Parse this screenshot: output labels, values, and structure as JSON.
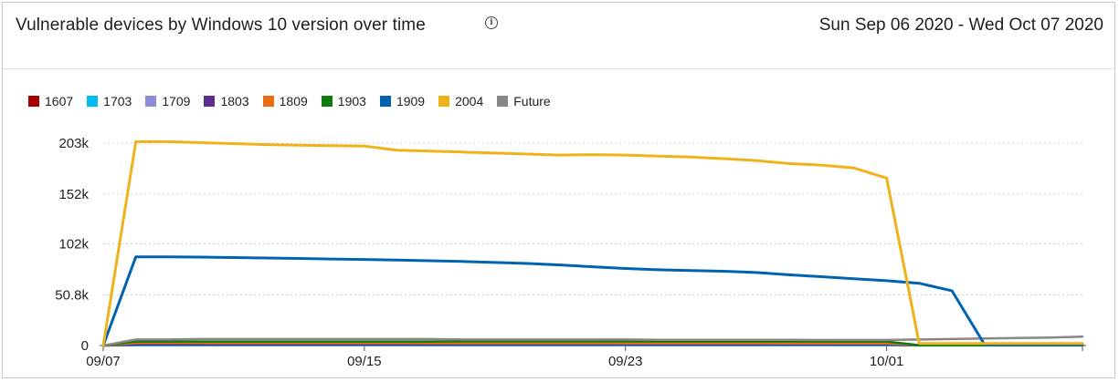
{
  "header": {
    "title": "Vulnerable devices by Windows 10 version over time",
    "info_icon": "info-icon",
    "date_range": "Sun Sep 06 2020 - Wed Oct 07 2020"
  },
  "chart_data": {
    "type": "line",
    "title": "Vulnerable devices by Windows 10 version over time",
    "xlabel": "",
    "ylabel": "",
    "x_tick_labels": [
      "09/07",
      "09/15",
      "09/23",
      "10/01"
    ],
    "y_tick_labels": [
      "0",
      "50.8k",
      "102k",
      "152k",
      "203k"
    ],
    "y_tick_values": [
      0,
      50800,
      102000,
      152000,
      203000
    ],
    "ylim": [
      0,
      203000
    ],
    "xlim": [
      0,
      30
    ],
    "grid": "horizontal dashed",
    "legend_position": "top-left",
    "x": [
      0,
      1,
      2,
      3,
      4,
      5,
      6,
      7,
      8,
      9,
      10,
      11,
      12,
      13,
      14,
      15,
      16,
      17,
      18,
      19,
      20,
      21,
      22,
      23,
      24,
      25,
      26,
      27,
      28,
      29,
      30
    ],
    "series": [
      {
        "name": "1607",
        "color": "#a80000",
        "values": [
          0,
          1200,
          1200,
          1200,
          1200,
          1200,
          1200,
          1200,
          1200,
          1200,
          1200,
          1200,
          1100,
          1100,
          1100,
          1100,
          1100,
          1100,
          1100,
          1100,
          1000,
          1000,
          1000,
          1000,
          1000,
          200,
          200,
          200,
          200,
          200,
          200
        ]
      },
      {
        "name": "1703",
        "color": "#00bcf2",
        "values": [
          0,
          300,
          300,
          300,
          300,
          300,
          300,
          300,
          300,
          300,
          300,
          300,
          300,
          300,
          300,
          300,
          300,
          300,
          300,
          300,
          300,
          300,
          300,
          300,
          300,
          100,
          100,
          100,
          100,
          100,
          100
        ]
      },
      {
        "name": "1709",
        "color": "#8e8cd8",
        "values": [
          0,
          2000,
          2000,
          2000,
          2000,
          2000,
          2000,
          2000,
          2000,
          1900,
          1900,
          1900,
          1900,
          1900,
          1900,
          1900,
          1800,
          1800,
          1800,
          1800,
          1800,
          1800,
          1800,
          1700,
          1700,
          300,
          300,
          300,
          300,
          300,
          300
        ]
      },
      {
        "name": "1803",
        "color": "#5c2d91",
        "values": [
          0,
          1000,
          1000,
          1000,
          1000,
          1000,
          1000,
          1000,
          1000,
          1000,
          1000,
          1000,
          1000,
          1000,
          1000,
          1000,
          1000,
          1000,
          1000,
          1000,
          1000,
          1000,
          1000,
          1000,
          1000,
          200,
          200,
          200,
          200,
          200,
          200
        ]
      },
      {
        "name": "1809",
        "color": "#ea6c10",
        "values": [
          0,
          2500,
          2500,
          2500,
          2400,
          2400,
          2400,
          2400,
          2400,
          2400,
          2300,
          2300,
          2300,
          2300,
          2300,
          2300,
          2200,
          2200,
          2200,
          2200,
          2200,
          2100,
          2100,
          2100,
          2100,
          500,
          500,
          500,
          500,
          500,
          500
        ]
      },
      {
        "name": "1903",
        "color": "#107c10",
        "values": [
          0,
          4000,
          4000,
          4000,
          4000,
          4000,
          4000,
          4000,
          4000,
          4000,
          4000,
          4200,
          4200,
          4200,
          4200,
          4200,
          4200,
          4100,
          4100,
          4100,
          4100,
          4100,
          4100,
          4000,
          4000,
          400,
          400,
          400,
          400,
          400,
          400
        ]
      },
      {
        "name": "1909",
        "color": "#0063b1",
        "values": [
          0,
          89000,
          89000,
          88700,
          88200,
          87800,
          87300,
          86800,
          86300,
          85700,
          85000,
          84300,
          83300,
          82300,
          80800,
          79000,
          77300,
          76000,
          75300,
          74500,
          73200,
          71000,
          69000,
          67000,
          65000,
          62500,
          55000,
          1000,
          900,
          900,
          900
        ]
      },
      {
        "name": "2004",
        "color": "#f0b21a",
        "values": [
          0,
          204500,
          204500,
          203500,
          202500,
          201500,
          201000,
          200500,
          200000,
          196000,
          195000,
          194000,
          193000,
          192000,
          191000,
          191500,
          191000,
          190000,
          189000,
          187500,
          185500,
          182500,
          181000,
          178000,
          168000,
          2000,
          2000,
          2000,
          2000,
          2000,
          2000
        ]
      },
      {
        "name": "Future",
        "color": "#8a8886",
        "values": [
          0,
          6000,
          6000,
          6500,
          6500,
          6500,
          6500,
          6500,
          6500,
          6500,
          6500,
          6000,
          6000,
          6000,
          6000,
          6000,
          6000,
          5800,
          5800,
          5800,
          5800,
          5800,
          5600,
          5600,
          5600,
          6000,
          6500,
          7000,
          7500,
          8000,
          9000
        ]
      }
    ]
  }
}
